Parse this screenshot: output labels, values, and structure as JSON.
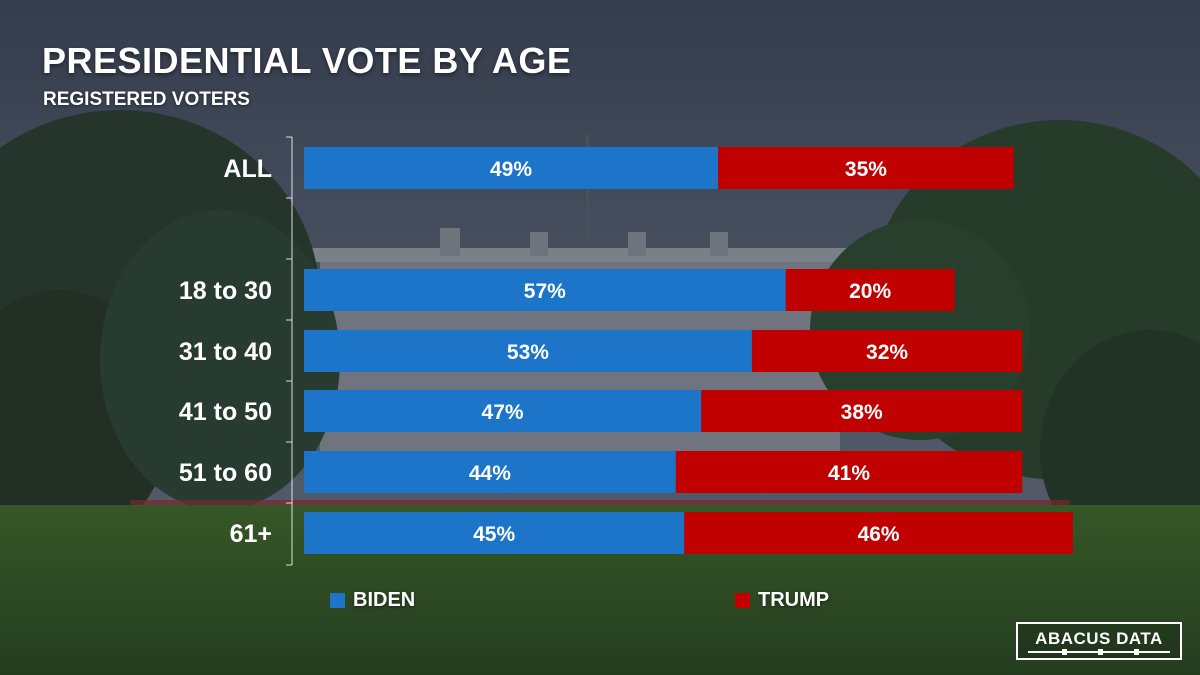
{
  "title": "PRESIDENTIAL VOTE BY AGE",
  "subtitle": "REGISTERED VOTERS",
  "colors": {
    "biden": "#1c75c9",
    "trump": "#c00000"
  },
  "chart_data": {
    "type": "bar",
    "orientation": "horizontal",
    "stacked": true,
    "title": "PRESIDENTIAL VOTE BY AGE",
    "subtitle": "REGISTERED VOTERS",
    "categories": [
      "ALL",
      "18 to 30",
      "31 to 40",
      "41 to 50",
      "51 to 60",
      "61+"
    ],
    "series": [
      {
        "name": "BIDEN",
        "values": [
          49,
          57,
          53,
          47,
          44,
          45
        ],
        "labels": [
          "49%",
          "57%",
          "53%",
          "47%",
          "44%",
          "45%"
        ]
      },
      {
        "name": "TRUMP",
        "values": [
          35,
          20,
          32,
          38,
          41,
          46
        ],
        "labels": [
          "35%",
          "20%",
          "32%",
          "38%",
          "41%",
          "46%"
        ]
      }
    ],
    "xlim": [
      0,
      100
    ],
    "legend": "bottom",
    "grid": false
  },
  "legend": {
    "biden_label": "BIDEN",
    "trump_label": "TRUMP"
  },
  "logo": {
    "text": "ABACUS DATA"
  }
}
